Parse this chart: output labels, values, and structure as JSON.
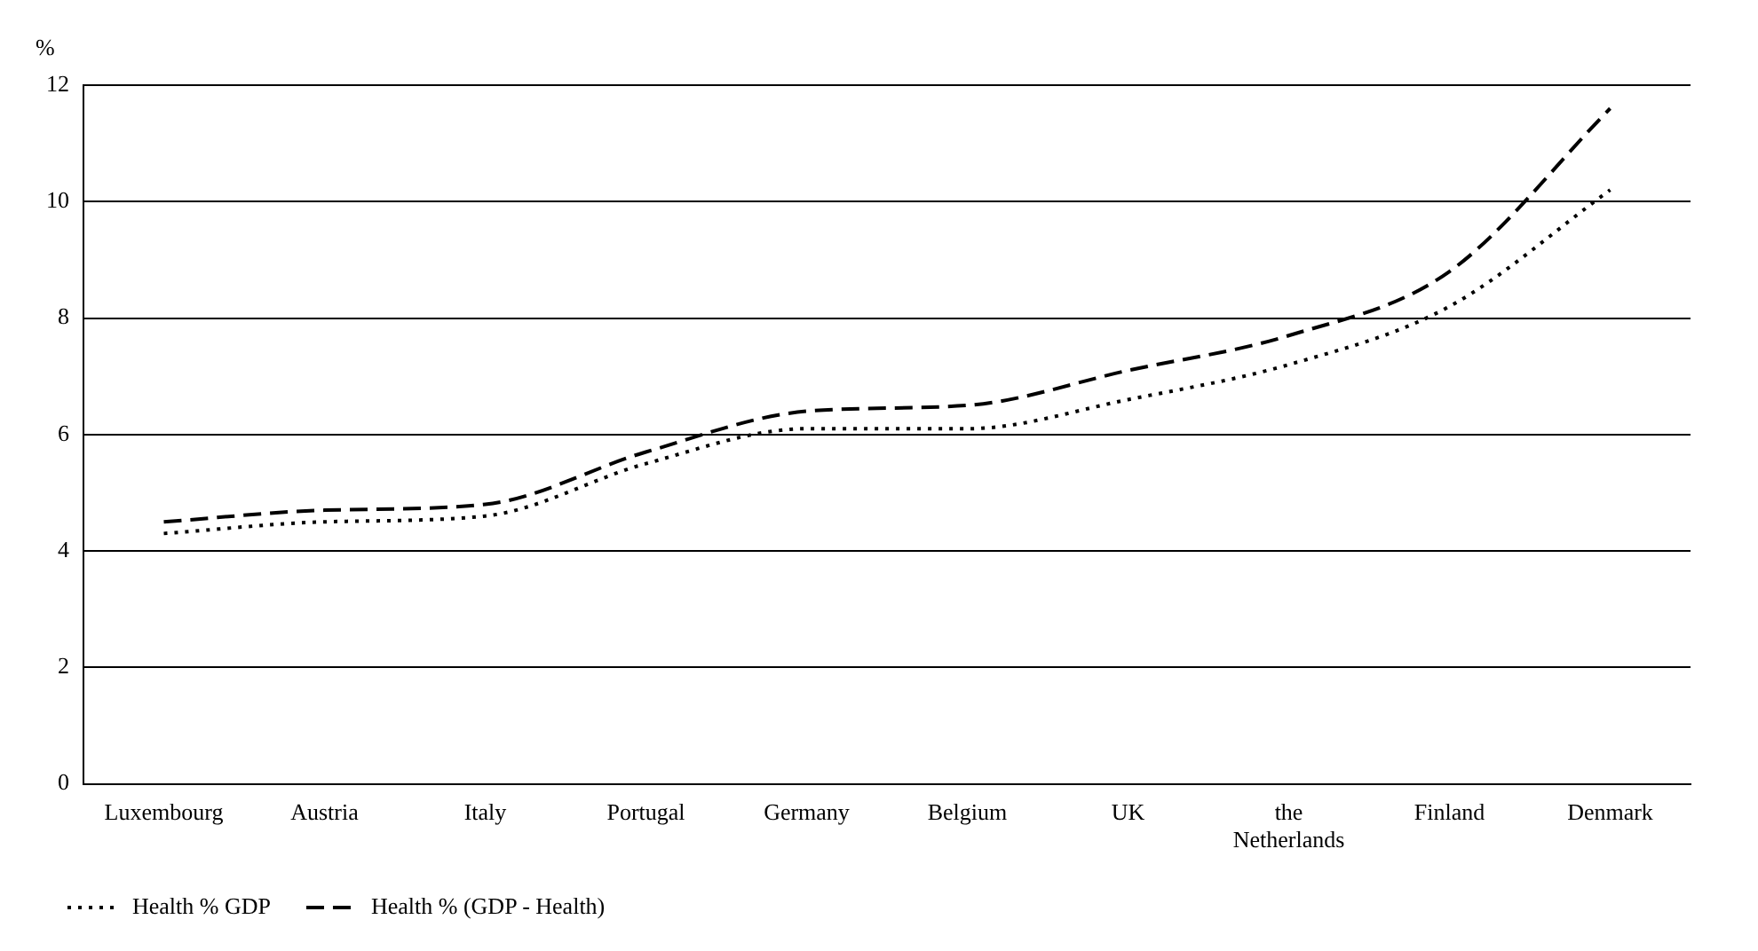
{
  "chart_data": {
    "type": "line",
    "ylabel": "%",
    "categories": [
      "Luxembourg",
      "Austria",
      "Italy",
      "Portugal",
      "Germany",
      "Belgium",
      "UK",
      "the Netherlands",
      "Finland",
      "Denmark"
    ],
    "series": [
      {
        "name": "Health % GDP",
        "color": "#000000",
        "line_style": "dotted",
        "values": [
          4.3,
          4.5,
          4.6,
          5.5,
          6.1,
          6.1,
          6.6,
          7.2,
          8.2,
          10.2
        ]
      },
      {
        "name": "Health % (GDP - Health)",
        "color": "#000000",
        "line_style": "dashed",
        "values": [
          4.5,
          4.7,
          4.8,
          5.7,
          6.4,
          6.5,
          7.1,
          7.7,
          8.8,
          11.6
        ]
      }
    ],
    "ylim": [
      0,
      12
    ],
    "yticks": [
      0,
      2,
      4,
      6,
      8,
      10,
      12
    ],
    "grid": "y",
    "legend": "bottom left",
    "marker": "none"
  }
}
